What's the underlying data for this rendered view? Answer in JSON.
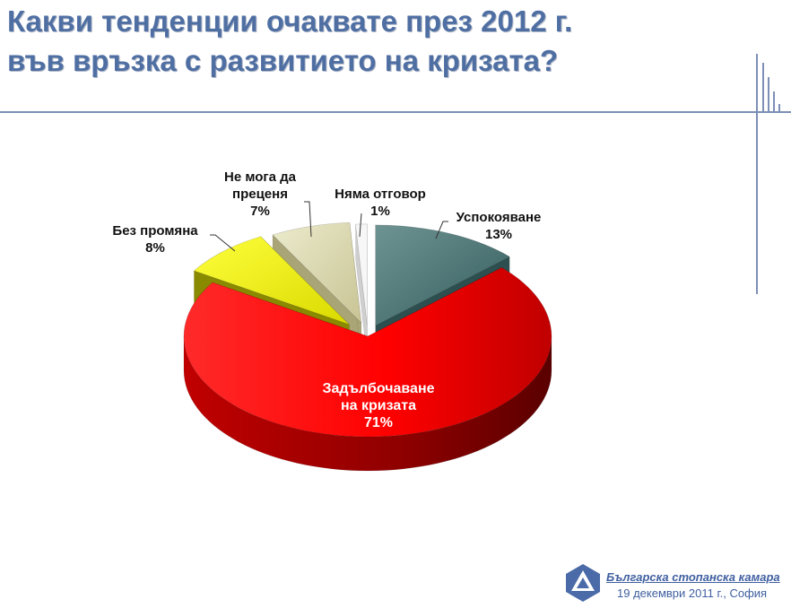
{
  "slide": {
    "title_line1": "Какви тенденции очаквате през 2012 г.",
    "title_line2": "във връзка с развитието на кризата?"
  },
  "chart_data": {
    "type": "pie",
    "title": "",
    "slices": [
      {
        "label": "Успокояване",
        "value": 13,
        "display": "13%",
        "color": "#3f6b6b"
      },
      {
        "label": "Задълбочаване на кризата",
        "value": 71,
        "display": "71%",
        "color": "#ff0000"
      },
      {
        "label": "Без промяна",
        "value": 8,
        "display": "8%",
        "color": "#e6e600"
      },
      {
        "label": "Не мога да преценя",
        "value": 7,
        "display": "7%",
        "color": "#d8d4a6"
      },
      {
        "label": "Няма отговор",
        "value": 1,
        "display": "1%",
        "color": "#f4f4f4"
      }
    ],
    "label_lines": {
      "calm_label": "Успокояване",
      "deep_label_1": "Задълбочаване",
      "deep_label_2": "на кризата",
      "nochange_label": "Без промяна",
      "cant_label_1": "Не мога да",
      "cant_label_2": "преценя",
      "noans_label": "Няма отговор"
    },
    "legend": "none",
    "style": "3d-exploded"
  },
  "footer": {
    "org": "Българска стопанска камара",
    "date": "19 декември 2011 г., София"
  }
}
